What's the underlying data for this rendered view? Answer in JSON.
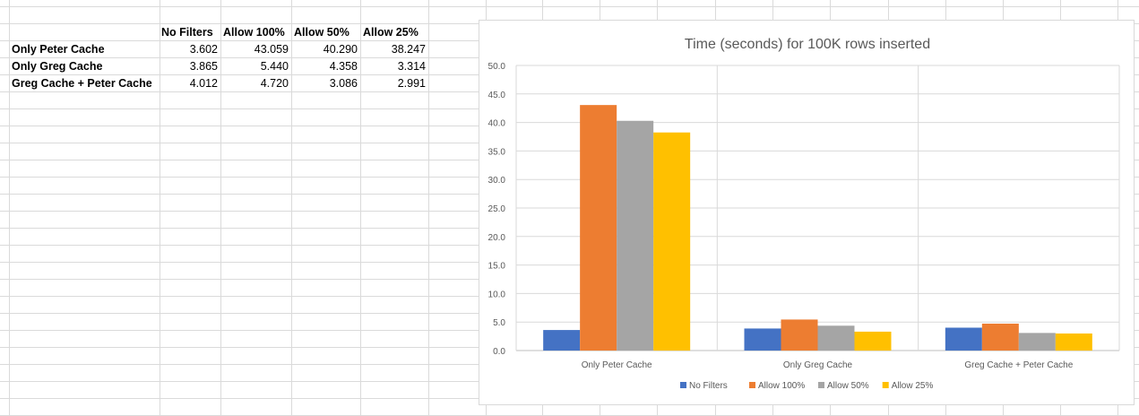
{
  "table": {
    "headers": [
      "No Filters",
      "Allow 100%",
      "Allow 50%",
      "Allow 25%"
    ],
    "rows": [
      {
        "label": "Only Peter Cache",
        "values": [
          "3.602",
          "43.059",
          "40.290",
          "38.247"
        ]
      },
      {
        "label": "Only Greg Cache",
        "values": [
          "3.865",
          "5.440",
          "4.358",
          "3.314"
        ]
      },
      {
        "label": "Greg Cache + Peter Cache",
        "values": [
          "4.012",
          "4.720",
          "3.086",
          "2.991"
        ]
      }
    ]
  },
  "chart_data": {
    "type": "bar",
    "title": "Time (seconds) for 100K rows inserted",
    "categories": [
      "Only Peter Cache",
      "Only Greg Cache",
      "Greg Cache + Peter Cache"
    ],
    "series": [
      {
        "name": "No Filters",
        "color": "#4472c4",
        "values": [
          3.602,
          3.865,
          4.012
        ]
      },
      {
        "name": "Allow 100%",
        "color": "#ed7d31",
        "values": [
          43.059,
          5.44,
          4.72
        ]
      },
      {
        "name": "Allow 50%",
        "color": "#a5a5a5",
        "values": [
          40.29,
          4.358,
          3.086
        ]
      },
      {
        "name": "Allow 25%",
        "color": "#ffc000",
        "values": [
          38.247,
          3.314,
          2.991
        ]
      }
    ],
    "ylim": [
      0,
      50
    ],
    "yticks": [
      "0.0",
      "5.0",
      "10.0",
      "15.0",
      "20.0",
      "25.0",
      "30.0",
      "35.0",
      "40.0",
      "45.0",
      "50.0"
    ],
    "xlabel": "",
    "ylabel": "",
    "grid": true,
    "legend": "bottom"
  }
}
